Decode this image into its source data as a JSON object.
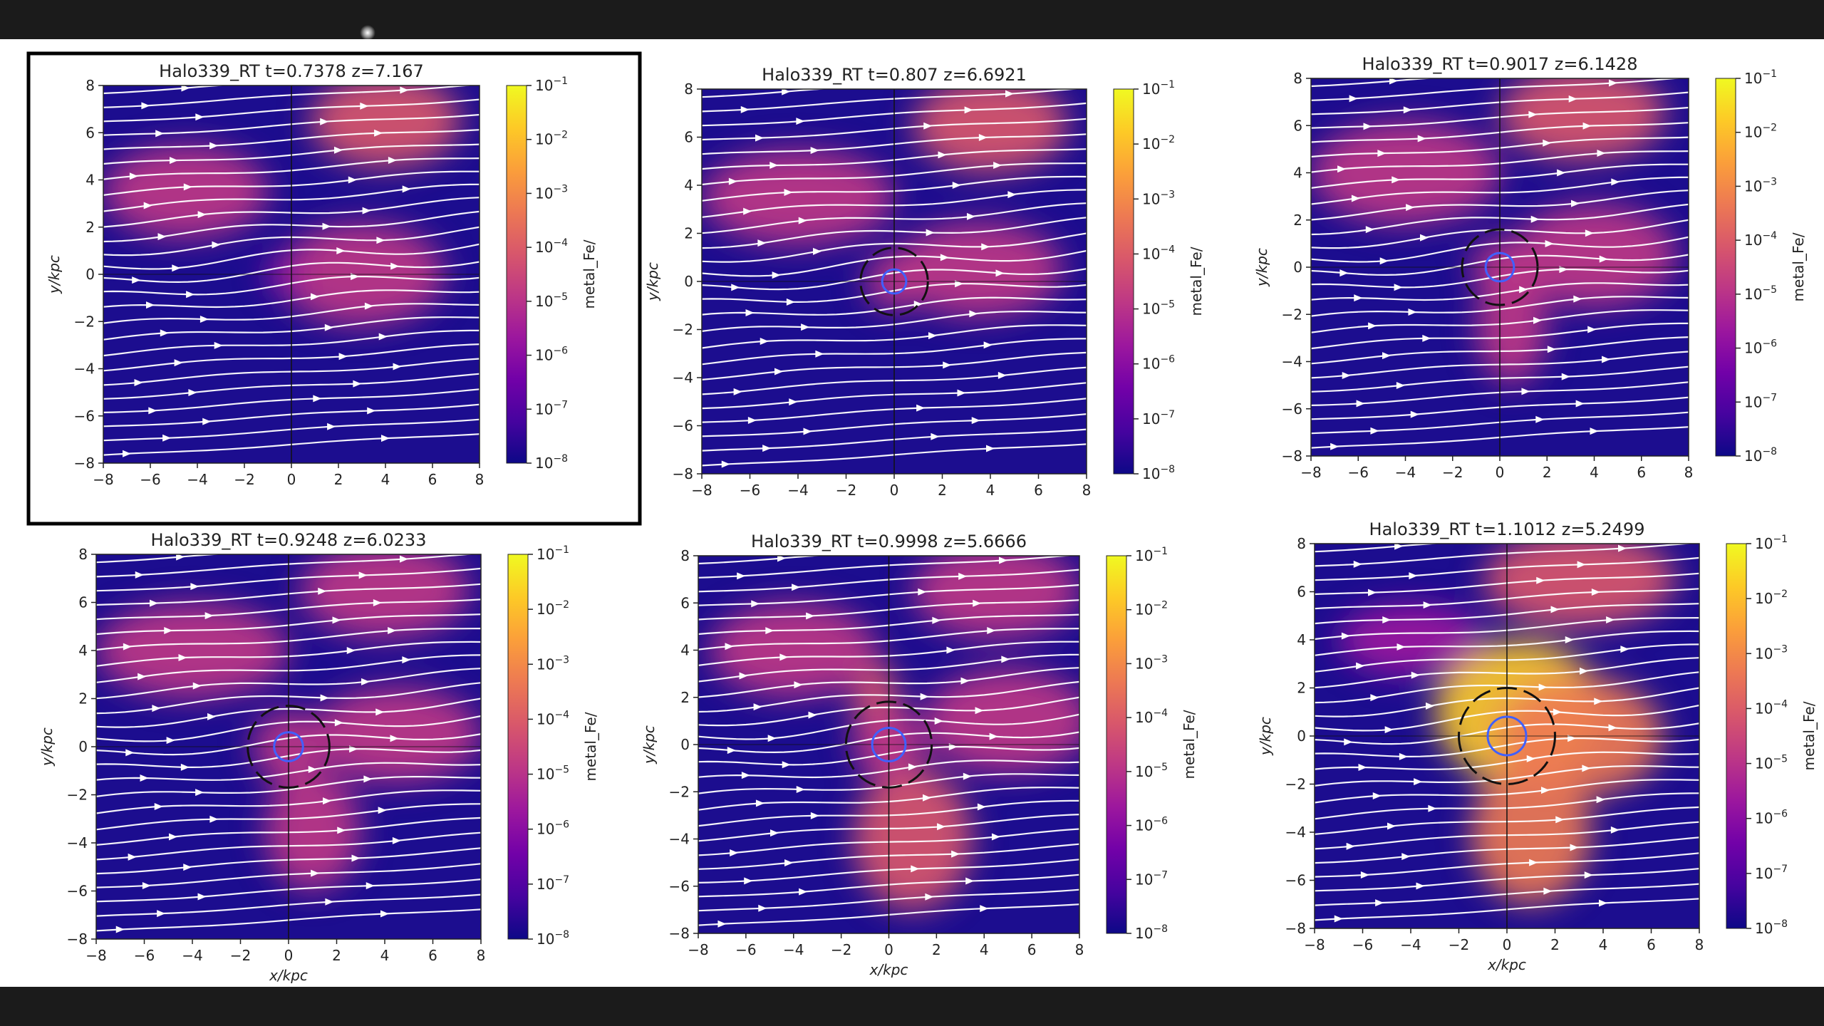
{
  "figure": {
    "description_colormap": "plasma",
    "background": "#ffffff"
  },
  "chart_data": [
    {
      "type": "heatmap",
      "title": "Halo339_RT  t=0.7378 z=7.167",
      "xlabel": "",
      "ylabel": "y/kpc",
      "colorbar_label": "metal_Fe/",
      "colorbar_ticks": [
        "10^-1",
        "10^-2",
        "10^-3",
        "10^-4",
        "10^-5",
        "10^-6",
        "10^-7",
        "10^-8"
      ],
      "xlim": [
        -8,
        8
      ],
      "ylim": [
        -8,
        8
      ],
      "xticks": [
        -8,
        -6,
        -4,
        -2,
        0,
        2,
        4,
        6,
        8
      ],
      "yticks": [
        -8,
        -6,
        -4,
        -2,
        0,
        2,
        4,
        6,
        8
      ],
      "scale": "log",
      "overlay": "streamlines",
      "selected": true,
      "blobs": [
        {
          "x": 4.0,
          "y": 6.5,
          "rx": 3.2,
          "ry": 2.0,
          "level": 0.55
        },
        {
          "x": -4.5,
          "y": 3.5,
          "rx": 3.5,
          "ry": 2.0,
          "level": 0.45
        },
        {
          "x": 3.0,
          "y": 0.0,
          "rx": 3.5,
          "ry": 2.2,
          "level": 0.45
        },
        {
          "x": -0.3,
          "y": 0.0,
          "rx": 0.8,
          "ry": 0.8,
          "level": 0.35
        }
      ],
      "circles": []
    },
    {
      "type": "heatmap",
      "title": "Halo339_RT  t=0.807 z=6.6921",
      "xlabel": "",
      "ylabel": "y/kpc",
      "colorbar_label": "metal_Fe/",
      "colorbar_ticks": [
        "10^-1",
        "10^-2",
        "10^-3",
        "10^-4",
        "10^-5",
        "10^-6",
        "10^-7",
        "10^-8"
      ],
      "xlim": [
        -8,
        8
      ],
      "ylim": [
        -8,
        8
      ],
      "xticks": [
        -8,
        -6,
        -4,
        -2,
        0,
        2,
        4,
        6,
        8
      ],
      "yticks": [
        -8,
        -6,
        -4,
        -2,
        0,
        2,
        4,
        6,
        8
      ],
      "scale": "log",
      "overlay": "streamlines",
      "selected": false,
      "blobs": [
        {
          "x": 4.0,
          "y": 6.5,
          "rx": 3.2,
          "ry": 2.0,
          "level": 0.55
        },
        {
          "x": -4.0,
          "y": 3.5,
          "rx": 4.0,
          "ry": 2.0,
          "level": 0.5
        },
        {
          "x": 3.5,
          "y": 0.5,
          "rx": 3.5,
          "ry": 2.0,
          "level": 0.45
        },
        {
          "x": 0.0,
          "y": 0.0,
          "rx": 1.2,
          "ry": 1.2,
          "level": 0.4
        }
      ],
      "circles": [
        {
          "r": 1.4,
          "color": "#111",
          "dash": true
        },
        {
          "r": 0.5,
          "color": "#4060ff",
          "dash": false
        }
      ]
    },
    {
      "type": "heatmap",
      "title": "Halo339_RT  t=0.9017 z=6.1428",
      "xlabel": "",
      "ylabel": "y/kpc",
      "colorbar_label": "metal_Fe/",
      "colorbar_ticks": [
        "10^-1",
        "10^-2",
        "10^-3",
        "10^-4",
        "10^-5",
        "10^-6",
        "10^-7",
        "10^-8"
      ],
      "xlim": [
        -8,
        8
      ],
      "ylim": [
        -8,
        8
      ],
      "xticks": [
        -8,
        -6,
        -4,
        -2,
        0,
        2,
        4,
        6,
        8
      ],
      "yticks": [
        -8,
        -6,
        -4,
        -2,
        0,
        2,
        4,
        6,
        8
      ],
      "scale": "log",
      "overlay": "streamlines",
      "selected": false,
      "blobs": [
        {
          "x": 3.5,
          "y": 6.5,
          "rx": 3.5,
          "ry": 2.0,
          "level": 0.55
        },
        {
          "x": -4.0,
          "y": 4.0,
          "rx": 4.0,
          "ry": 2.2,
          "level": 0.5
        },
        {
          "x": 4.0,
          "y": 0.5,
          "rx": 3.5,
          "ry": 2.2,
          "level": 0.45
        },
        {
          "x": 0.5,
          "y": -2.5,
          "rx": 1.5,
          "ry": 2.5,
          "level": 0.45
        },
        {
          "x": 0.0,
          "y": 0.0,
          "rx": 1.2,
          "ry": 1.2,
          "level": 0.45
        }
      ],
      "circles": [
        {
          "r": 1.6,
          "color": "#111",
          "dash": true
        },
        {
          "r": 0.6,
          "color": "#4060ff",
          "dash": false
        }
      ]
    },
    {
      "type": "heatmap",
      "title": "Halo339_RT  t=0.9248 z=6.0233",
      "xlabel": "x/kpc",
      "ylabel": "y/kpc",
      "colorbar_label": "metal_Fe/",
      "colorbar_ticks": [
        "10^-1",
        "10^-2",
        "10^-3",
        "10^-4",
        "10^-5",
        "10^-6",
        "10^-7",
        "10^-8"
      ],
      "xlim": [
        -8,
        8
      ],
      "ylim": [
        -8,
        8
      ],
      "xticks": [
        -8,
        -6,
        -4,
        -2,
        0,
        2,
        4,
        6,
        8
      ],
      "yticks": [
        -8,
        -6,
        -4,
        -2,
        0,
        2,
        4,
        6,
        8
      ],
      "scale": "log",
      "overlay": "streamlines",
      "selected": false,
      "blobs": [
        {
          "x": 4.0,
          "y": 6.5,
          "rx": 3.5,
          "ry": 2.0,
          "level": 0.5
        },
        {
          "x": -4.0,
          "y": 4.0,
          "rx": 4.0,
          "ry": 2.0,
          "level": 0.5
        },
        {
          "x": 4.5,
          "y": 0.5,
          "rx": 3.5,
          "ry": 2.0,
          "level": 0.45
        },
        {
          "x": 1.0,
          "y": -3.5,
          "rx": 2.0,
          "ry": 2.5,
          "level": 0.5
        },
        {
          "x": 0.0,
          "y": 0.0,
          "rx": 1.5,
          "ry": 1.5,
          "level": 0.5
        }
      ],
      "circles": [
        {
          "r": 1.7,
          "color": "#111",
          "dash": true
        },
        {
          "r": 0.6,
          "color": "#4060ff",
          "dash": false
        }
      ]
    },
    {
      "type": "heatmap",
      "title": "Halo339_RT  t=0.9998 z=5.6666",
      "xlabel": "x/kpc",
      "ylabel": "y/kpc",
      "colorbar_label": "metal_Fe/",
      "colorbar_ticks": [
        "10^-1",
        "10^-2",
        "10^-3",
        "10^-4",
        "10^-5",
        "10^-6",
        "10^-7",
        "10^-8"
      ],
      "xlim": [
        -8,
        8
      ],
      "ylim": [
        -8,
        8
      ],
      "xticks": [
        -8,
        -6,
        -4,
        -2,
        0,
        2,
        4,
        6,
        8
      ],
      "yticks": [
        -8,
        -6,
        -4,
        -2,
        0,
        2,
        4,
        6,
        8
      ],
      "scale": "log",
      "overlay": "streamlines",
      "selected": false,
      "blobs": [
        {
          "x": 4.5,
          "y": 6.5,
          "rx": 3.5,
          "ry": 2.0,
          "level": 0.5
        },
        {
          "x": -4.0,
          "y": 4.0,
          "rx": 3.5,
          "ry": 2.0,
          "level": 0.5
        },
        {
          "x": 5.0,
          "y": 1.0,
          "rx": 3.5,
          "ry": 2.2,
          "level": 0.45
        },
        {
          "x": 1.0,
          "y": -4.0,
          "rx": 2.5,
          "ry": 3.0,
          "level": 0.55
        },
        {
          "x": -0.5,
          "y": 1.5,
          "rx": 1.0,
          "ry": 2.0,
          "level": 0.55
        },
        {
          "x": 0.0,
          "y": 0.0,
          "rx": 1.5,
          "ry": 1.5,
          "level": 0.5
        }
      ],
      "circles": [
        {
          "r": 1.8,
          "color": "#111",
          "dash": true
        },
        {
          "r": 0.7,
          "color": "#4060ff",
          "dash": false
        }
      ]
    },
    {
      "type": "heatmap",
      "title": "Halo339_RT  t=1.1012 z=5.2499",
      "xlabel": "x/kpc",
      "ylabel": "y/kpc",
      "colorbar_label": "metal_Fe/",
      "colorbar_ticks": [
        "10^-1",
        "10^-2",
        "10^-3",
        "10^-4",
        "10^-5",
        "10^-6",
        "10^-7",
        "10^-8"
      ],
      "xlim": [
        -8,
        8
      ],
      "ylim": [
        -8,
        8
      ],
      "xticks": [
        -8,
        -6,
        -4,
        -2,
        0,
        2,
        4,
        6,
        8
      ],
      "yticks": [
        -8,
        -6,
        -4,
        -2,
        0,
        2,
        4,
        6,
        8
      ],
      "scale": "log",
      "overlay": "streamlines",
      "selected": false,
      "blobs": [
        {
          "x": 3.0,
          "y": 6.5,
          "rx": 4.0,
          "ry": 2.0,
          "level": 0.55
        },
        {
          "x": 0.5,
          "y": 1.0,
          "rx": 3.5,
          "ry": 3.0,
          "level": 0.85
        },
        {
          "x": 3.0,
          "y": 0.0,
          "rx": 3.5,
          "ry": 2.5,
          "level": 0.7
        },
        {
          "x": 1.0,
          "y": -4.0,
          "rx": 2.5,
          "ry": 3.0,
          "level": 0.65
        },
        {
          "x": -4.0,
          "y": 4.0,
          "rx": 3.0,
          "ry": 1.5,
          "level": 0.35
        }
      ],
      "circles": [
        {
          "r": 2.0,
          "color": "#111",
          "dash": true
        },
        {
          "r": 0.8,
          "color": "#4060ff",
          "dash": false
        }
      ]
    }
  ]
}
